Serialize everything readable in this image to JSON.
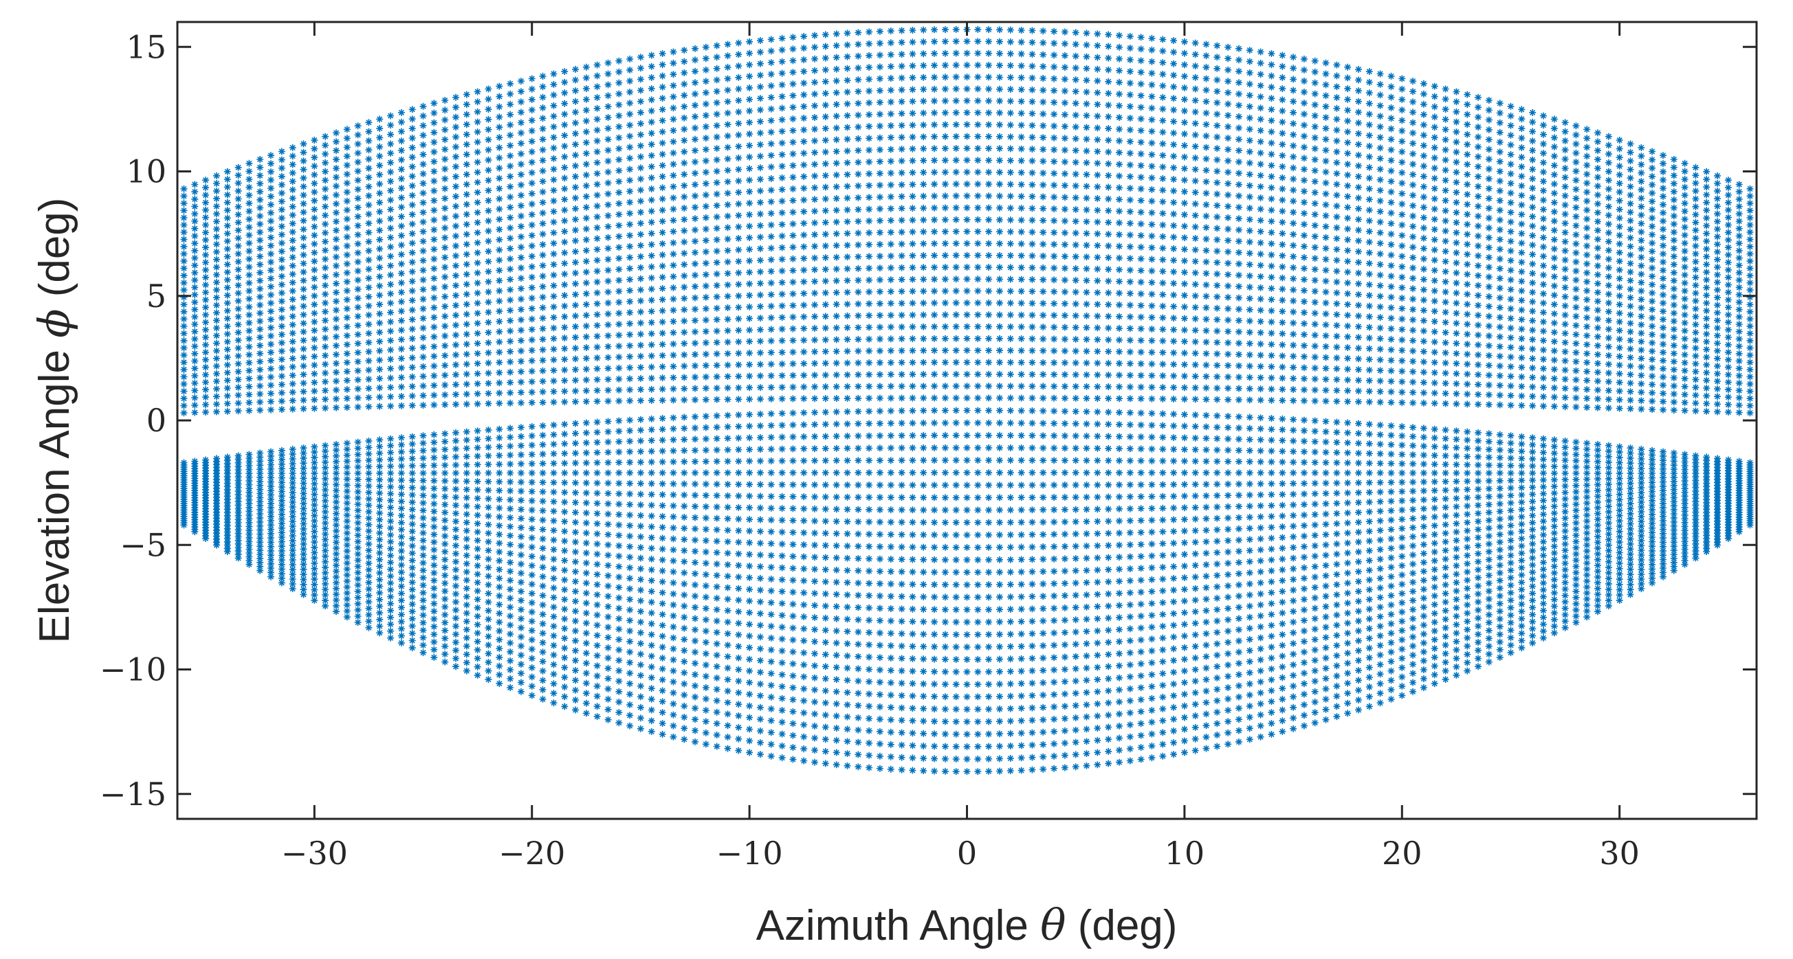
{
  "chart_data": {
    "type": "scatter",
    "title": "",
    "xlabel": "Azimuth Angle θ (deg)",
    "xlabel_parts": {
      "before": "Azimuth Angle ",
      "symbol": "θ",
      "after": " (deg)"
    },
    "ylabel": "Elevation Angle φ (deg)",
    "ylabel_parts": {
      "before": "Elevation Angle ",
      "symbol": "ϕ",
      "after": " (deg)"
    },
    "xlim": [
      -36.3,
      36.3
    ],
    "ylim": [
      -16,
      16
    ],
    "xticks": [
      -30,
      -20,
      -10,
      0,
      10,
      20,
      30
    ],
    "xtick_labels": [
      "−30",
      "−20",
      "−10",
      "0",
      "10",
      "20",
      "30"
    ],
    "yticks": [
      -15,
      -10,
      -5,
      0,
      5,
      10,
      15
    ],
    "ytick_labels": [
      "−15",
      "−10",
      "−5",
      "0",
      "5",
      "10",
      "15"
    ],
    "grid": false,
    "marker": "asterisk",
    "color": "#0072BD",
    "series": [
      {
        "description_free": true,
        "x_range": [
          -36,
          36
        ],
        "x_step": 0.5,
        "upper_rows": {
          "count": 32,
          "center_elevation_top": 15.7,
          "center_elevation_bottom": 0.9,
          "edge_elevation_top": 9.3,
          "edge_elevation_bottom": 0.3
        },
        "lower_rows": {
          "count": 30,
          "center_elevation_top": 0.4,
          "center_elevation_bottom": -14.1,
          "edge_elevation_top": -1.7,
          "edge_elevation_bottom": -4.2
        }
      }
    ]
  }
}
